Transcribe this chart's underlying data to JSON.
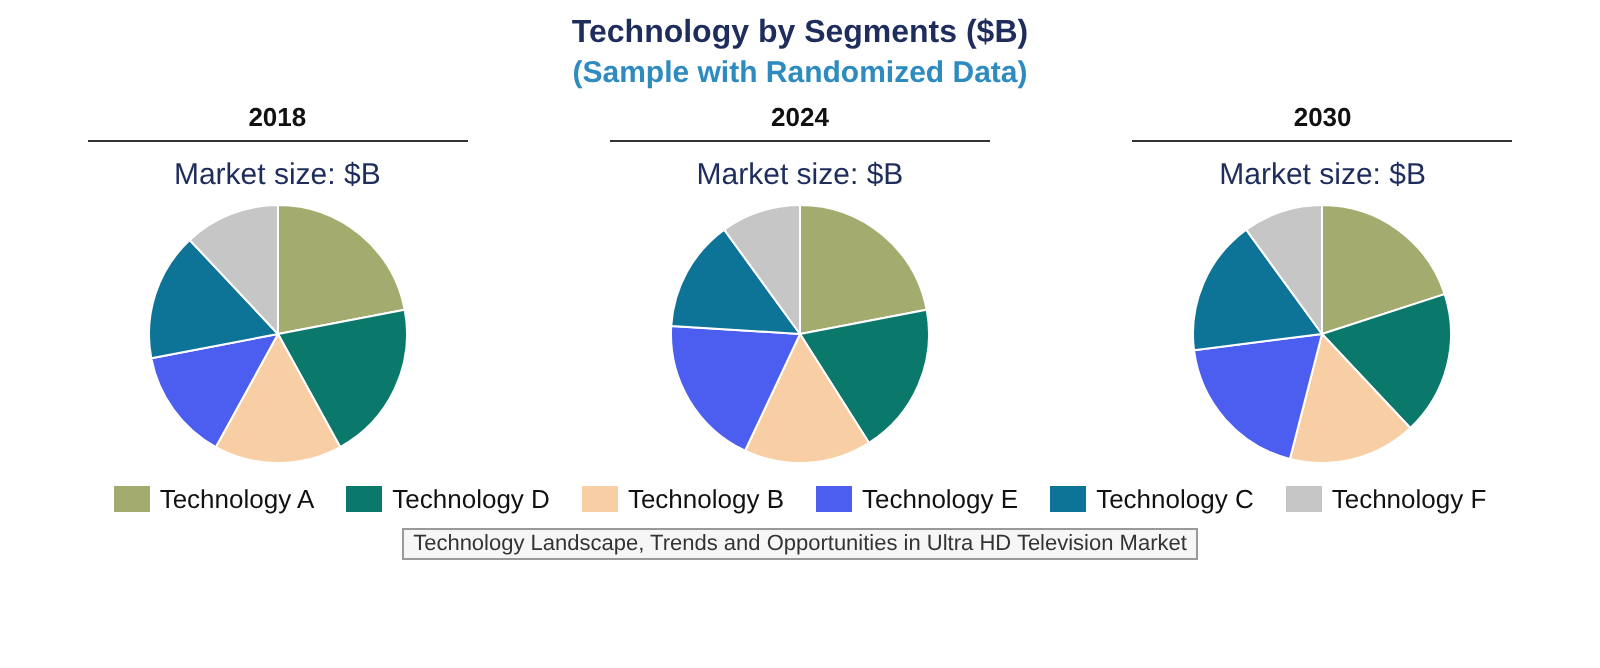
{
  "chart_data": [
    {
      "type": "other",
      "title": "Technology by Segments ($B)",
      "subtitle": "(Sample with Randomized Data)",
      "annotations": [
        "Technology Landscape, Trends and Opportunities in Ultra HD Television Market"
      ]
    },
    {
      "type": "pie",
      "title": "2018",
      "subtitle": "Market size: $B",
      "legend": "bottom",
      "categories": [
        "Technology A",
        "Technology D",
        "Technology B",
        "Technology E",
        "Technology C",
        "Technology F"
      ],
      "values": [
        22,
        20,
        16,
        14,
        16,
        12
      ],
      "colors": [
        "#a3ac6e",
        "#0a786b",
        "#f8cfa4",
        "#4b5ef0",
        "#0e7497",
        "#c6c6c6"
      ]
    },
    {
      "type": "pie",
      "title": "2024",
      "subtitle": "Market size: $B",
      "categories": [
        null,
        null,
        null,
        null,
        null,
        null
      ],
      "values": [
        22,
        19,
        16,
        19,
        14,
        10
      ],
      "colors": [
        "#a3ac6e",
        "#0a786b",
        "#f8cfa4",
        "#4b5ef0",
        "#0e7497",
        "#c6c6c6"
      ]
    },
    {
      "type": "pie",
      "title": "2030",
      "subtitle": "Market size: $B",
      "categories": [
        null,
        null,
        null,
        null,
        null,
        null
      ],
      "values": [
        20,
        18,
        16,
        19,
        17,
        10
      ],
      "colors": [
        "#a3ac6e",
        "#0a786b",
        "#f8cfa4",
        "#4b5ef0",
        "#0e7497",
        "#c6c6c6"
      ]
    }
  ]
}
